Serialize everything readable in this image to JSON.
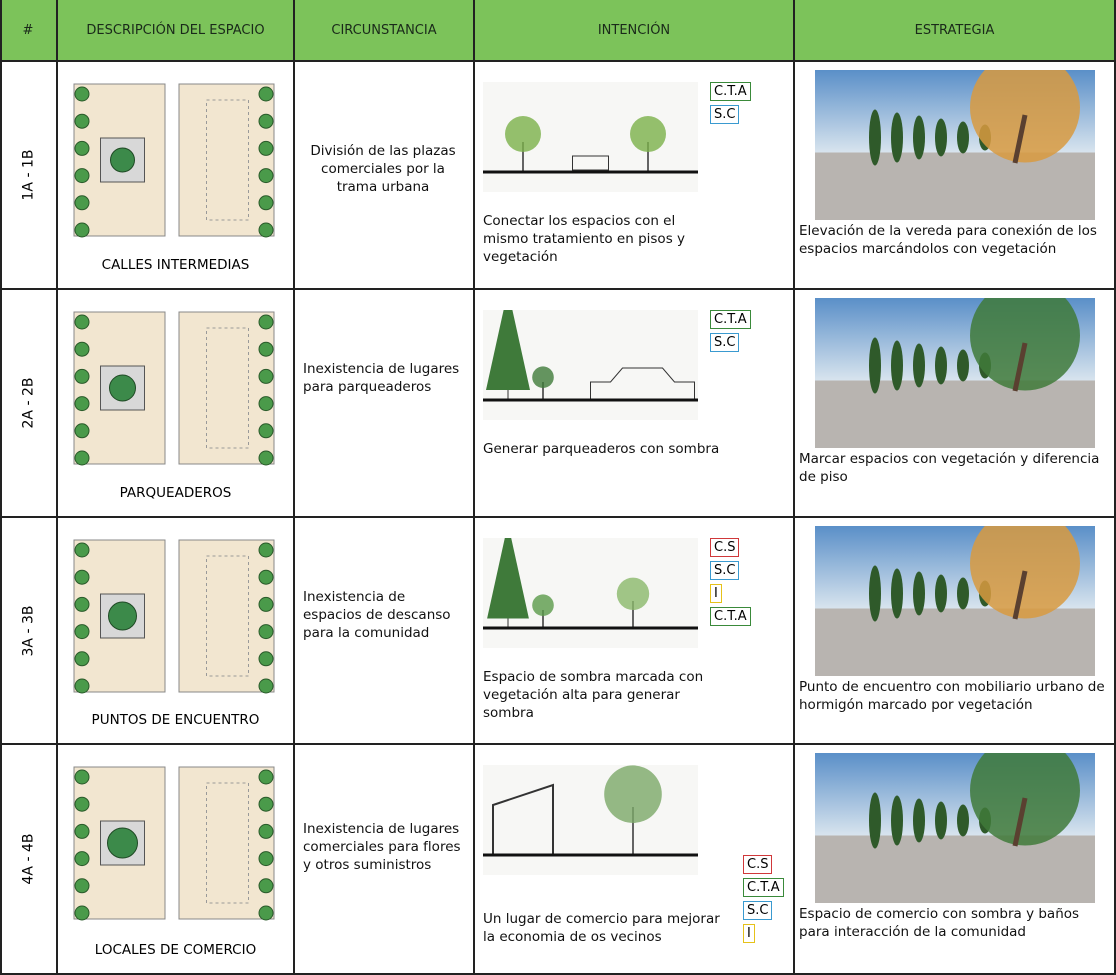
{
  "table": {
    "header": [
      "#",
      "DESCRIPCIÓN DEL ESPACIO",
      "CIRCUNSTANCIA",
      "INTENCIÓN",
      "ESTRATEGIA"
    ],
    "rows": [
      {
        "id": "1A - 1B",
        "space": "CALLES INTERMEDIAS",
        "circumstance": "División de las plazas comerciales por la trama urbana",
        "intention": "Conectar los espacios con el mismo tratamiento en pisos y vegetación",
        "tags": [
          {
            "label": "C.T.A",
            "color": "#3a8a3a"
          },
          {
            "label": "S.C",
            "color": "#3a9ad0"
          }
        ],
        "strategy": "Elevación de la vereda para conexión de los espacios marcándolos con vegetación"
      },
      {
        "id": "2A - 2B",
        "space": "PARQUEADEROS",
        "circumstance": "Inexistencia de lugares para parqueaderos",
        "intention": "Generar parqueaderos con sombra",
        "tags": [
          {
            "label": "C.T.A",
            "color": "#3a8a3a"
          },
          {
            "label": "S.C",
            "color": "#3a9ad0"
          }
        ],
        "strategy": "Marcar espacios con vegetación y diferencia de piso"
      },
      {
        "id": "3A - 3B",
        "space": "PUNTOS DE ENCUENTRO",
        "circumstance": "Inexistencia de espacios de descanso para la comunidad",
        "intention": "Espacio de sombra marcada con vegetación alta para generar sombra",
        "tags": [
          {
            "label": "C.S",
            "color": "#d0383a"
          },
          {
            "label": "S.C",
            "color": "#3a9ad0"
          },
          {
            "label": "I",
            "color": "#e6c21a"
          },
          {
            "label": "C.T.A",
            "color": "#3a8a3a"
          }
        ],
        "strategy": "Punto de encuentro con mobiliario urbano de hormigón marcado por vegetación"
      },
      {
        "id": "4A - 4B",
        "space": "LOCALES DE COMERCIO",
        "circumstance": "Inexistencia de lugares comerciales para flores y otros suministros",
        "intention": "Un lugar de comercio para mejorar la economia de os vecinos",
        "tags": [
          {
            "label": "C.S",
            "color": "#d0383a"
          },
          {
            "label": "C.T.A",
            "color": "#3a8a3a"
          },
          {
            "label": "S.C",
            "color": "#3a9ad0"
          },
          {
            "label": "I",
            "color": "#e6c21a"
          }
        ],
        "strategy": "Espacio de comercio con sombra y baños para interacción de la comunidad"
      }
    ]
  }
}
